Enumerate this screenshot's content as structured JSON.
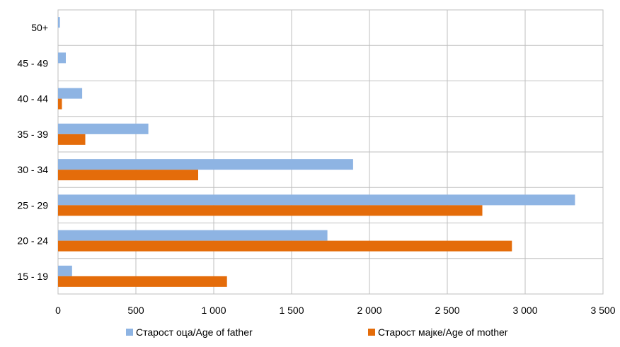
{
  "chart_data": {
    "type": "bar",
    "orientation": "horizontal",
    "title": "",
    "xlabel": "",
    "ylabel": "",
    "categories": [
      "15 - 19",
      "20 - 24",
      "25 - 29",
      "30 - 34",
      "35 - 39",
      "40 - 44",
      "45 - 49",
      "50+"
    ],
    "x_ticks": [
      "0",
      "500",
      "1 000",
      "1 500",
      "2 000",
      "2 500",
      "3 000",
      "3 500"
    ],
    "xlim": [
      0,
      3500
    ],
    "grid": "vertical",
    "legend_position": "bottom",
    "series": [
      {
        "name": "Старост оца/Age of father",
        "color": "#8eb4e3",
        "values": [
          90,
          1730,
          3320,
          1895,
          580,
          155,
          50,
          12
        ]
      },
      {
        "name": "Старост мајке/Age of mother",
        "color": "#e46c0a",
        "values": [
          1085,
          2915,
          2725,
          900,
          175,
          25,
          0,
          0
        ]
      }
    ]
  }
}
